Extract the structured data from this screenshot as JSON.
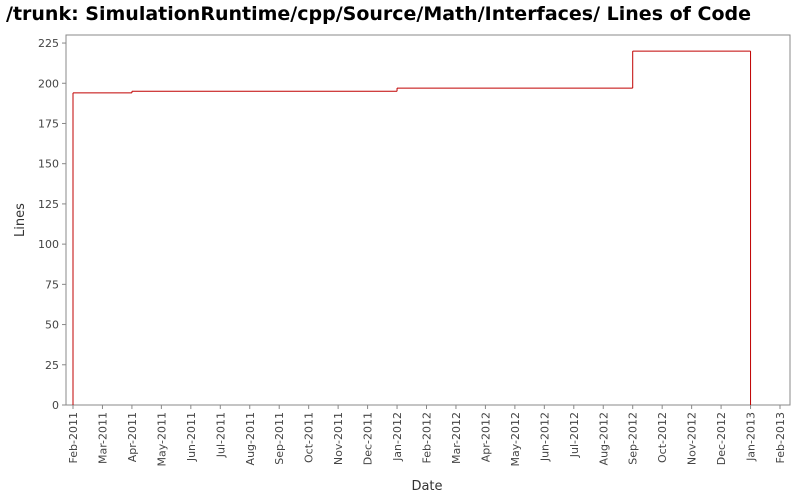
{
  "chart_data": {
    "type": "step",
    "title": "/trunk: SimulationRuntime/cpp/Source/Math/Interfaces/ Lines of Code",
    "xlabel": "Date",
    "ylabel": "Lines",
    "x": [
      "2011-02",
      "2011-04",
      "2012-01",
      "2012-09",
      "2013-01"
    ],
    "series": [
      {
        "name": "Lines",
        "color": "#c00000",
        "values": [
          194,
          195,
          197,
          220,
          0
        ]
      }
    ],
    "xlim": [
      "2011-02",
      "2013-02"
    ],
    "xticks": [
      {
        "value": "2011-02",
        "label": "Feb-2011"
      },
      {
        "value": "2011-03",
        "label": "Mar-2011"
      },
      {
        "value": "2011-04",
        "label": "Apr-2011"
      },
      {
        "value": "2011-05",
        "label": "May-2011"
      },
      {
        "value": "2011-06",
        "label": "Jun-2011"
      },
      {
        "value": "2011-07",
        "label": "Jul-2011"
      },
      {
        "value": "2011-08",
        "label": "Aug-2011"
      },
      {
        "value": "2011-09",
        "label": "Sep-2011"
      },
      {
        "value": "2011-10",
        "label": "Oct-2011"
      },
      {
        "value": "2011-11",
        "label": "Nov-2011"
      },
      {
        "value": "2011-12",
        "label": "Dec-2011"
      },
      {
        "value": "2012-01",
        "label": "Jan-2012"
      },
      {
        "value": "2012-02",
        "label": "Feb-2012"
      },
      {
        "value": "2012-03",
        "label": "Mar-2012"
      },
      {
        "value": "2012-04",
        "label": "Apr-2012"
      },
      {
        "value": "2012-05",
        "label": "May-2012"
      },
      {
        "value": "2012-06",
        "label": "Jun-2012"
      },
      {
        "value": "2012-07",
        "label": "Jul-2012"
      },
      {
        "value": "2012-08",
        "label": "Aug-2012"
      },
      {
        "value": "2012-09",
        "label": "Sep-2012"
      },
      {
        "value": "2012-10",
        "label": "Oct-2012"
      },
      {
        "value": "2012-11",
        "label": "Nov-2012"
      },
      {
        "value": "2012-12",
        "label": "Dec-2012"
      },
      {
        "value": "2013-01",
        "label": "Jan-2013"
      },
      {
        "value": "2013-02",
        "label": "Feb-2013"
      }
    ],
    "ylim": [
      0,
      230
    ],
    "yticks": [
      0,
      25,
      50,
      75,
      100,
      125,
      150,
      175,
      200,
      225
    ],
    "grid": false
  }
}
